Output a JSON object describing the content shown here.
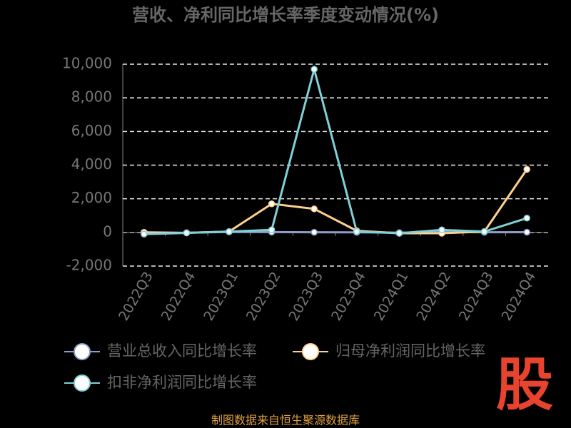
{
  "chart_data": {
    "type": "line",
    "title": "营收、净利同比增长率季度变动情况(%)",
    "categories": [
      "2022Q3",
      "2022Q4",
      "2023Q1",
      "2023Q2",
      "2023Q3",
      "2023Q4",
      "2024Q1",
      "2024Q2",
      "2024Q3",
      "2024Q4"
    ],
    "series": [
      {
        "name": "营业总收入同比增长率",
        "color": "#8c9ec9",
        "values": [
          10,
          -20,
          30,
          20,
          10,
          5,
          -10,
          20,
          10,
          15
        ]
      },
      {
        "name": "归母净利润同比增长率",
        "color": "#ffd08c",
        "values": [
          0,
          -30,
          50,
          1700,
          1400,
          100,
          -50,
          -50,
          50,
          3750
        ]
      },
      {
        "name": "扣非净利润同比增长率",
        "color": "#7fd0d8",
        "values": [
          -100,
          -30,
          50,
          150,
          9700,
          50,
          -50,
          150,
          50,
          850
        ]
      }
    ],
    "ylim": [
      -2000,
      10000
    ],
    "yticks": [
      {
        "value": -2000,
        "label": "-2,000"
      },
      0,
      {
        "value": 2000,
        "label": "2,000"
      },
      {
        "value": 4000,
        "label": "4,000"
      },
      {
        "value": 6000,
        "label": "6,000"
      },
      {
        "value": 8000,
        "label": "8,000"
      },
      {
        "value": 10000,
        "label": "10,000"
      }
    ],
    "grid": true,
    "legend": "bottom",
    "source": "制图数据来自恒生聚源数据库",
    "logo": "股"
  }
}
